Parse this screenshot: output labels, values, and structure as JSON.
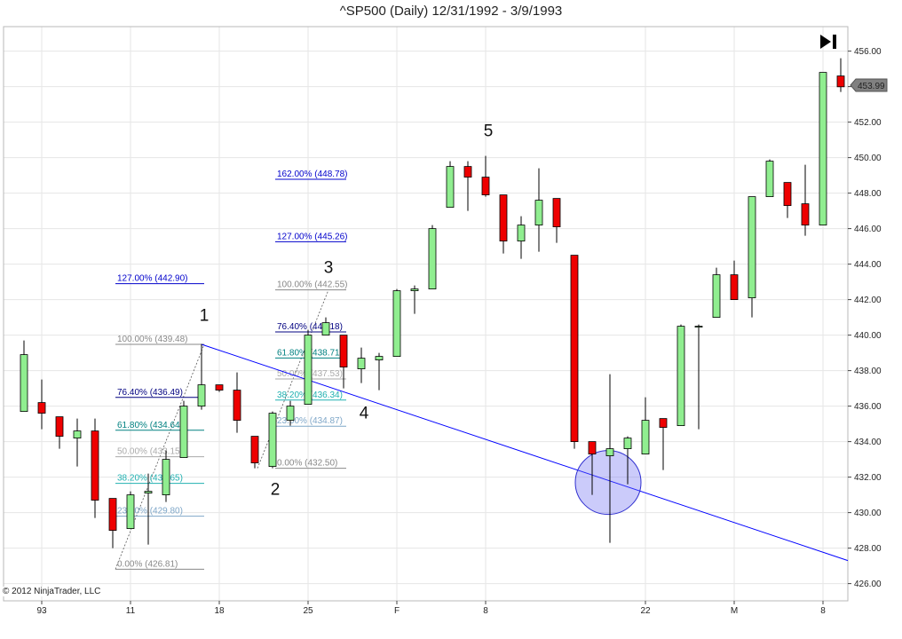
{
  "window": {
    "title": "^SP500 (Daily)  12/31/1992 - 3/9/1993",
    "copyright": "© 2012 NinjaTrader, LLC",
    "price_marker": "453.99",
    "go_to_end_icon": "skip-to-end-icon"
  },
  "colors": {
    "up_candle": "#90ee90",
    "down_candle": "#ee0000",
    "trend_line": "#0000ff",
    "highlight_circle": "#6a6af0",
    "grid": "#e6e6e6"
  },
  "chart_data": {
    "type": "candlestick",
    "title": "^SP500 (Daily)  12/31/1992 - 3/9/1993",
    "ylim": [
      425,
      457.5
    ],
    "y_ticks": [
      "426.00",
      "428.00",
      "430.00",
      "432.00",
      "434.00",
      "436.00",
      "438.00",
      "440.00",
      "442.00",
      "444.00",
      "446.00",
      "448.00",
      "450.00",
      "452.00",
      "454.00",
      "456.00"
    ],
    "x_ticks": [
      {
        "label": "93",
        "bar": 1
      },
      {
        "label": "11",
        "bar": 6
      },
      {
        "label": "18",
        "bar": 11
      },
      {
        "label": "25",
        "bar": 16
      },
      {
        "label": "F",
        "bar": 21
      },
      {
        "label": "8",
        "bar": 26
      },
      {
        "label": "22",
        "bar": 35
      },
      {
        "label": "M",
        "bar": 40
      },
      {
        "label": "8",
        "bar": 45
      }
    ],
    "bars": [
      {
        "o": 435.7,
        "h": 439.7,
        "l": 435.7,
        "c": 438.9
      },
      {
        "o": 436.2,
        "h": 437.5,
        "l": 434.7,
        "c": 435.6
      },
      {
        "o": 435.4,
        "h": 435.4,
        "l": 433.6,
        "c": 434.3
      },
      {
        "o": 434.2,
        "h": 435.3,
        "l": 432.6,
        "c": 434.6
      },
      {
        "o": 434.6,
        "h": 435.3,
        "l": 429.7,
        "c": 430.7
      },
      {
        "o": 430.8,
        "h": 430.8,
        "l": 428.0,
        "c": 429.0
      },
      {
        "o": 429.1,
        "h": 431.2,
        "l": 429.1,
        "c": 431.0
      },
      {
        "o": 431.1,
        "h": 432.2,
        "l": 428.2,
        "c": 431.2
      },
      {
        "o": 431.0,
        "h": 433.5,
        "l": 430.6,
        "c": 433.0
      },
      {
        "o": 433.1,
        "h": 436.3,
        "l": 433.1,
        "c": 436.0
      },
      {
        "o": 436.0,
        "h": 439.5,
        "l": 435.8,
        "c": 437.2
      },
      {
        "o": 437.2,
        "h": 437.2,
        "l": 436.8,
        "c": 436.9
      },
      {
        "o": 436.9,
        "h": 437.9,
        "l": 434.5,
        "c": 435.2
      },
      {
        "o": 434.3,
        "h": 434.3,
        "l": 432.5,
        "c": 432.8
      },
      {
        "o": 432.6,
        "h": 435.7,
        "l": 432.5,
        "c": 435.6
      },
      {
        "o": 435.2,
        "h": 436.3,
        "l": 434.9,
        "c": 436.0
      },
      {
        "o": 436.1,
        "h": 440.3,
        "l": 436.1,
        "c": 440.0
      },
      {
        "o": 440.0,
        "h": 441.0,
        "l": 440.0,
        "c": 440.7
      },
      {
        "o": 440.0,
        "h": 440.0,
        "l": 437.0,
        "c": 438.2
      },
      {
        "o": 438.1,
        "h": 439.3,
        "l": 437.3,
        "c": 438.7
      },
      {
        "o": 438.6,
        "h": 439.0,
        "l": 436.9,
        "c": 438.8
      },
      {
        "o": 438.8,
        "h": 442.6,
        "l": 438.8,
        "c": 442.5
      },
      {
        "o": 442.5,
        "h": 442.8,
        "l": 441.2,
        "c": 442.6
      },
      {
        "o": 442.6,
        "h": 446.2,
        "l": 442.6,
        "c": 446.0
      },
      {
        "o": 447.2,
        "h": 449.8,
        "l": 447.2,
        "c": 449.5
      },
      {
        "o": 449.5,
        "h": 449.8,
        "l": 447.0,
        "c": 448.9
      },
      {
        "o": 448.9,
        "h": 450.1,
        "l": 447.8,
        "c": 447.9
      },
      {
        "o": 447.9,
        "h": 447.9,
        "l": 444.6,
        "c": 445.3
      },
      {
        "o": 445.3,
        "h": 446.7,
        "l": 444.3,
        "c": 446.2
      },
      {
        "o": 446.2,
        "h": 449.4,
        "l": 444.7,
        "c": 447.6
      },
      {
        "o": 447.7,
        "h": 447.7,
        "l": 445.2,
        "c": 446.1
      },
      {
        "o": 444.5,
        "h": 444.5,
        "l": 433.6,
        "c": 434.0
      },
      {
        "o": 434.0,
        "h": 434.0,
        "l": 431.0,
        "c": 433.3
      },
      {
        "o": 433.2,
        "h": 437.8,
        "l": 428.3,
        "c": 433.6
      },
      {
        "o": 433.6,
        "h": 434.3,
        "l": 431.6,
        "c": 434.2
      },
      {
        "o": 433.3,
        "h": 436.5,
        "l": 433.3,
        "c": 435.2
      },
      {
        "o": 435.3,
        "h": 435.3,
        "l": 432.4,
        "c": 434.8
      },
      {
        "o": 434.9,
        "h": 440.6,
        "l": 434.9,
        "c": 440.5
      },
      {
        "o": 440.5,
        "h": 440.6,
        "l": 434.7,
        "c": 440.5
      },
      {
        "o": 441.0,
        "h": 443.8,
        "l": 441.0,
        "c": 443.4
      },
      {
        "o": 443.4,
        "h": 444.2,
        "l": 442.0,
        "c": 442.0
      },
      {
        "o": 442.1,
        "h": 447.8,
        "l": 441.0,
        "c": 447.8
      },
      {
        "o": 447.8,
        "h": 449.9,
        "l": 447.8,
        "c": 449.8
      },
      {
        "o": 448.6,
        "h": 448.6,
        "l": 446.6,
        "c": 447.3
      },
      {
        "o": 447.4,
        "h": 449.6,
        "l": 445.6,
        "c": 446.2
      },
      {
        "o": 446.2,
        "h": 454.8,
        "l": 446.2,
        "c": 454.8
      },
      {
        "o": 454.6,
        "h": 455.6,
        "l": 453.7,
        "c": 453.99
      }
    ],
    "trend_line": {
      "x1_bar": 10,
      "y1": 439.48,
      "x2_bar": 47,
      "y2": 427.3
    },
    "highlight_circle": {
      "center_bar": 33,
      "center_y": 431.7
    },
    "fib_groups": [
      {
        "from_bar": 6,
        "to_bar": 10,
        "swing_start_bar": 6,
        "swing_end_bar": 10,
        "low": 426.81,
        "high": 439.48,
        "levels": [
          {
            "label": "0.00% (426.81)",
            "y": 426.81,
            "color": "#888888"
          },
          {
            "label": "23.60% (429.80)",
            "y": 429.8,
            "color": "#7fa7c8"
          },
          {
            "label": "38.20% (431.65)",
            "y": 431.65,
            "color": "#20b0b0"
          },
          {
            "label": "50.00% (433.15)",
            "y": 433.15,
            "color": "#aaaaaa"
          },
          {
            "label": "61.80% (434.64)",
            "y": 434.64,
            "color": "#008080"
          },
          {
            "label": "76.40% (436.49)",
            "y": 436.49,
            "color": "#000080"
          },
          {
            "label": "100.00% (439.48)",
            "y": 439.48,
            "color": "#888888"
          },
          {
            "label": "127.00% (442.90)",
            "y": 442.9,
            "color": "#0000cc"
          }
        ]
      },
      {
        "from_bar": 15,
        "to_bar": 18,
        "swing_start_bar": 14,
        "swing_end_bar": 17,
        "low": 432.5,
        "high": 442.55,
        "levels": [
          {
            "label": "0.00% (432.50)",
            "y": 432.5,
            "color": "#888888"
          },
          {
            "label": "23.60% (434.87)",
            "y": 434.87,
            "color": "#7fa7c8"
          },
          {
            "label": "38.20% (436.34)",
            "y": 436.34,
            "color": "#20b0b0"
          },
          {
            "label": "50.00% (437.53)",
            "y": 437.53,
            "color": "#aaaaaa"
          },
          {
            "label": "61.80% (438.71)",
            "y": 438.71,
            "color": "#008080"
          },
          {
            "label": "76.40% (440.18)",
            "y": 440.18,
            "color": "#000080"
          },
          {
            "label": "100.00% (442.55)",
            "y": 442.55,
            "color": "#888888"
          },
          {
            "label": "127.00% (445.26)",
            "y": 445.26,
            "color": "#0000cc"
          },
          {
            "label": "162.00% (448.78)",
            "y": 448.78,
            "color": "#0000cc"
          }
        ]
      }
    ],
    "wave_labels": [
      {
        "text": "1",
        "bar": 10,
        "y": 440.8
      },
      {
        "text": "2",
        "bar": 14,
        "y": 431.0
      },
      {
        "text": "3",
        "bar": 17,
        "y": 443.5
      },
      {
        "text": "4",
        "bar": 19,
        "y": 435.3
      },
      {
        "text": "5",
        "bar": 26,
        "y": 451.2
      }
    ]
  }
}
